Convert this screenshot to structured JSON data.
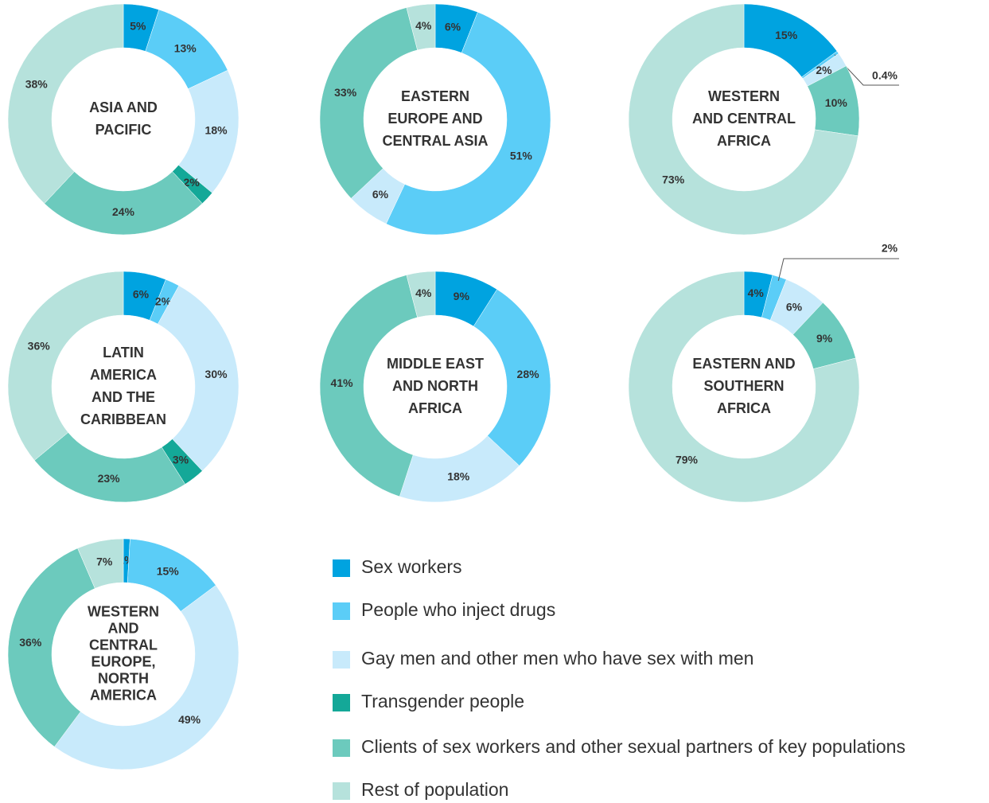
{
  "legend": {
    "categories": [
      "Sex workers",
      "People who inject drugs",
      "Gay men and other men who have sex with men",
      "Transgender people",
      "Clients of sex workers and other sexual partners of key populations",
      "Rest of population"
    ],
    "colors": [
      "#00a3e0",
      "#5bcdf7",
      "#c8eafb",
      "#14a898",
      "#6ccabd",
      "#b6e2dc"
    ]
  },
  "chart_data": [
    {
      "type": "donut",
      "title": [
        "ASIA AND",
        "PACIFIC"
      ],
      "values": [
        5,
        13,
        18,
        2,
        24,
        38
      ],
      "value_labels": [
        "5%",
        "13%",
        "18%",
        "2%",
        "24%",
        "38%"
      ]
    },
    {
      "type": "donut",
      "title": [
        "EASTERN",
        "EUROPE AND",
        "CENTRAL ASIA"
      ],
      "values": [
        6,
        51,
        6,
        null,
        33,
        4
      ],
      "value_labels": [
        "6%",
        "51%",
        "6%",
        null,
        "33%",
        "4%"
      ]
    },
    {
      "type": "donut",
      "title": [
        "WESTERN",
        "AND CENTRAL",
        "AFRICA"
      ],
      "values": [
        15,
        0.4,
        2,
        null,
        10,
        73
      ],
      "value_labels": [
        "15%",
        "0.4%",
        "2%",
        null,
        "10%",
        "73%"
      ]
    },
    {
      "type": "donut",
      "title": [
        "LATIN",
        "AMERICA",
        "AND THE",
        "CARIBBEAN"
      ],
      "values": [
        6,
        2,
        30,
        3,
        23,
        36
      ],
      "value_labels": [
        "6%",
        "2%",
        "30%",
        "3%",
        "23%",
        "36%"
      ]
    },
    {
      "type": "donut",
      "title": [
        "MIDDLE EAST",
        "AND NORTH",
        "AFRICA"
      ],
      "values": [
        9,
        28,
        18,
        null,
        41,
        4
      ],
      "value_labels": [
        "9%",
        "28%",
        "18%",
        null,
        "41%",
        "4%"
      ]
    },
    {
      "type": "donut",
      "title": [
        "EASTERN AND",
        "SOUTHERN",
        "AFRICA"
      ],
      "values": [
        4,
        2,
        6,
        null,
        9,
        79
      ],
      "value_labels": [
        "4%",
        "2%",
        "6%",
        null,
        "9%",
        "79%"
      ]
    },
    {
      "type": "donut",
      "title": [
        "WESTERN",
        "AND",
        "CENTRAL",
        "EUROPE,",
        "NORTH",
        "AMERICA"
      ],
      "values": [
        1,
        15,
        49,
        null,
        36,
        7
      ],
      "value_labels": [
        "1%",
        "15%",
        "49%",
        null,
        "36%",
        "7%"
      ]
    }
  ]
}
